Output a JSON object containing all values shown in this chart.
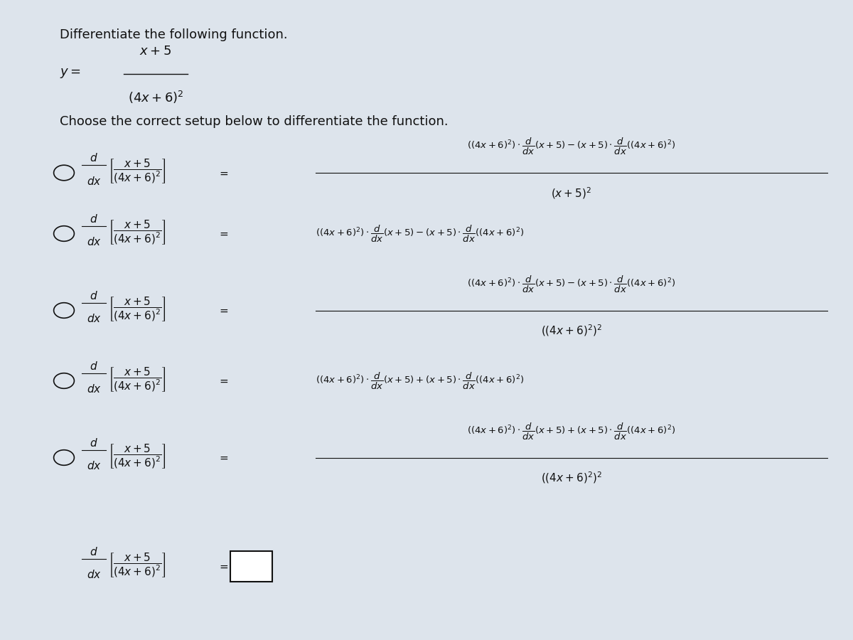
{
  "bg_color": "#a0b4c8",
  "panel_color": "#dde4ec",
  "title": "Differentiate the following function.",
  "choose_text": "Choose the correct setup below to differentiate the function.",
  "fig_width": 12.0,
  "fig_height": 9.0,
  "text_color": "#111111"
}
